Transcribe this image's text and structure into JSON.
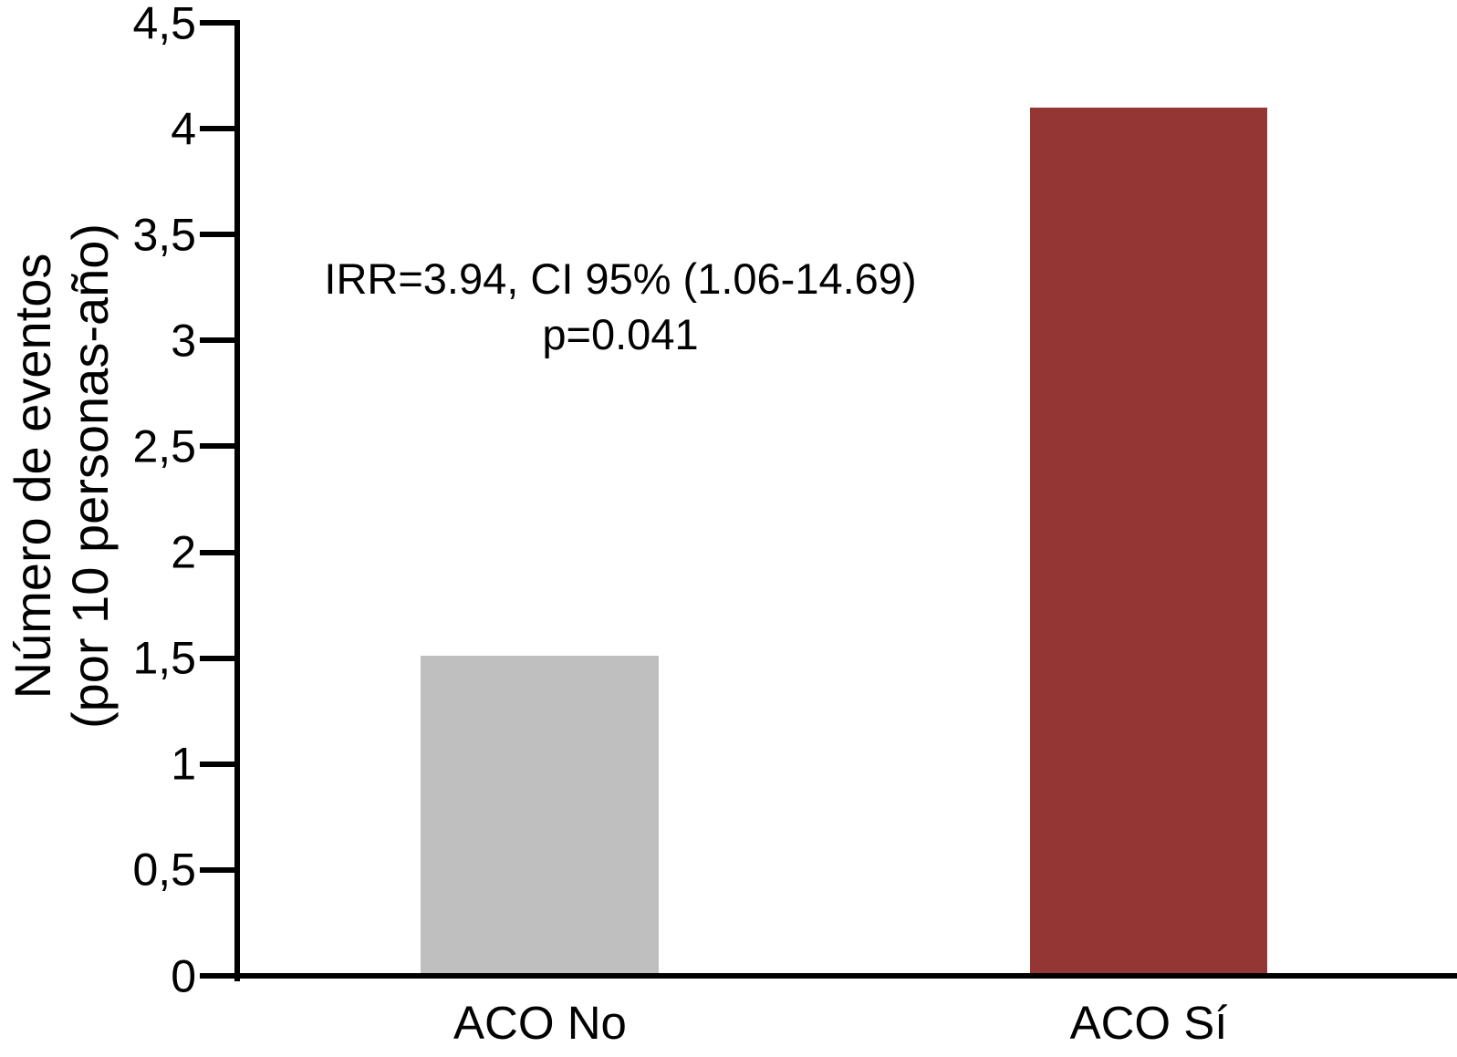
{
  "chart_data": {
    "type": "bar",
    "title": "",
    "categories": [
      "ACO No",
      "ACO Sí"
    ],
    "values": [
      1.51,
      4.1
    ],
    "bar_colors": [
      "#bfbfbf",
      "#943634"
    ],
    "xlabel": "",
    "ylabel_line1": "Número de eventos",
    "ylabel_line2": "(por 10 personas-año)",
    "ylim": [
      0,
      4.5
    ],
    "ytick_values": [
      0,
      0.5,
      1,
      1.5,
      2,
      2.5,
      3,
      3.5,
      4,
      4.5
    ],
    "ytick_labels": [
      "0",
      "0,5",
      "1",
      "1,5",
      "2",
      "2,5",
      "3",
      "3,5",
      "4",
      "4,5"
    ],
    "grid": false,
    "legend": "none",
    "annotation_line1": "IRR=3.94, CI 95% (1.06-14.69)",
    "annotation_line2": "p=0.041",
    "axis_color": "#000000",
    "text_color": "#000000",
    "background_color": "#ffffff"
  }
}
